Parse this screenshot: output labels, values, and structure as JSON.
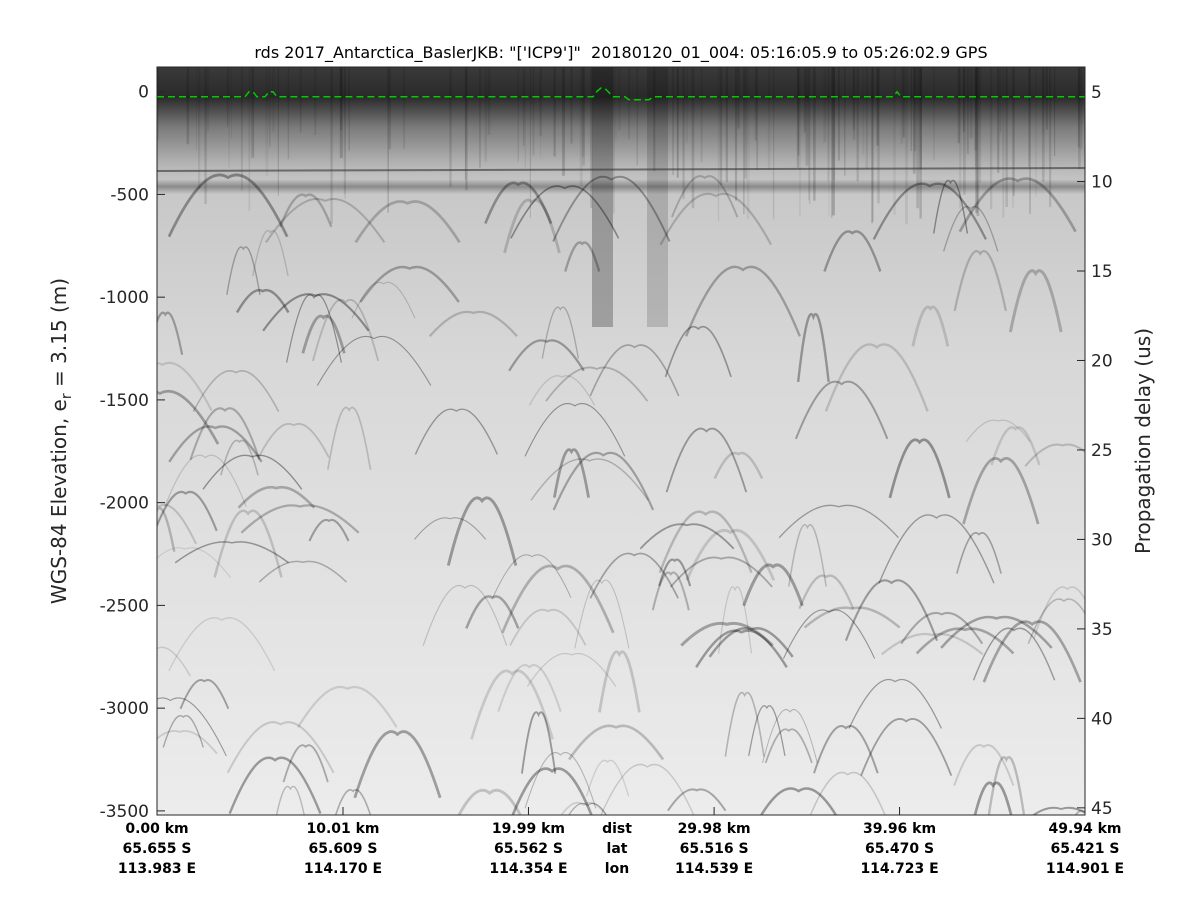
{
  "chart_data": {
    "type": "heatmap",
    "title": "rds 2017_Antarctica_BaslerJKB: \"['ICP9']\"  20180120_01_004: 05:16:05.9 to 05:26:02.9 GPS",
    "ylabel_left": "WGS-84 Elevation, e",
    "ylabel_left_sub": "r",
    "ylabel_left_tail": " = 3.15 (m)",
    "ylabel_right": "Propagation delay (us)",
    "ylim_left": [
      -3520,
      120
    ],
    "ylim_right": [
      3.6,
      45.4
    ],
    "xlim_km": [
      0,
      49.94
    ],
    "colormap": "gray",
    "surface_line_color": "#00cc00",
    "grid": false,
    "yticks_left": [
      0,
      -500,
      -1000,
      -1500,
      -2000,
      -2500,
      -3000,
      -3500
    ],
    "yticks_right": [
      5,
      10,
      15,
      20,
      25,
      30,
      35,
      40,
      45
    ],
    "xticks": [
      {
        "dist": "0.00 km",
        "lat": "65.655 S",
        "lon": "113.983 E",
        "km": 0
      },
      {
        "dist": "10.01 km",
        "lat": "65.609 S",
        "lon": "114.170 E",
        "km": 10.01
      },
      {
        "dist": "19.99 km",
        "lat": "65.562 S",
        "lon": "114.354 E",
        "km": 19.99
      },
      {
        "dist": "29.98 km",
        "lat": "65.516 S",
        "lon": "114.539 E",
        "km": 29.98
      },
      {
        "dist": "39.96 km",
        "lat": "65.470 S",
        "lon": "114.723 E",
        "km": 39.96
      },
      {
        "dist": "49.94 km",
        "lat": "65.421 S",
        "lon": "114.901 E",
        "km": 49.94
      }
    ],
    "xtick_row_labels": {
      "dist": "dist",
      "lat": "lat",
      "lon": "lon"
    }
  }
}
